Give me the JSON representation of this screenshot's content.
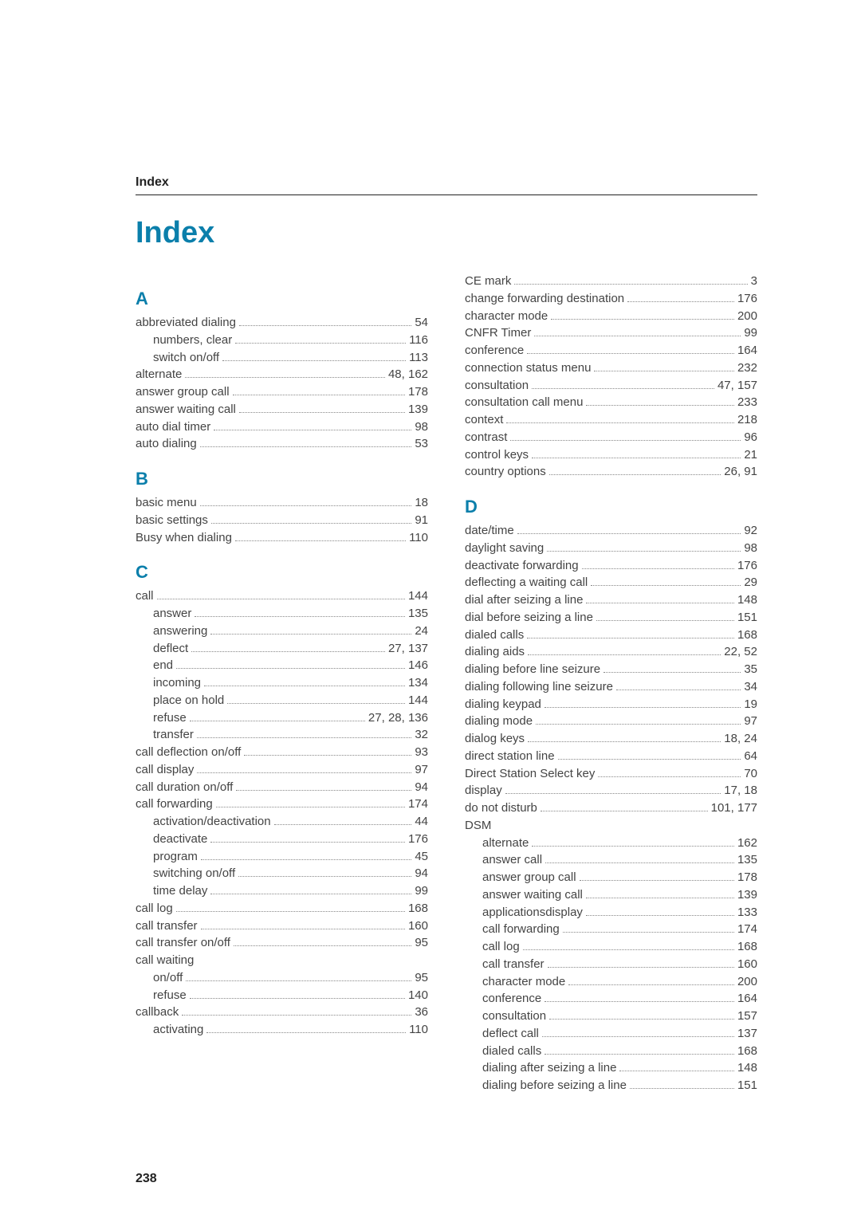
{
  "top_label": "Index",
  "main_heading": "Index",
  "page_number": "238",
  "colors": {
    "heading": "#0b7fab",
    "text": "#444444",
    "rule": "#222222",
    "dots": "#888888",
    "background": "#ffffff"
  },
  "fonts": {
    "main_heading_size": 38,
    "section_letter_size": 22,
    "entry_size": 15,
    "top_label_size": 16
  },
  "left_column": [
    {
      "type": "letter",
      "text": "A"
    },
    {
      "type": "entry",
      "label": "abbreviated dialing",
      "page": "54",
      "indent": 0
    },
    {
      "type": "entry",
      "label": "numbers, clear",
      "page": "116",
      "indent": 1
    },
    {
      "type": "entry",
      "label": "switch on/off",
      "page": "113",
      "indent": 1
    },
    {
      "type": "entry",
      "label": "alternate",
      "page": "48, 162",
      "indent": 0
    },
    {
      "type": "entry",
      "label": "answer group call",
      "page": "178",
      "indent": 0
    },
    {
      "type": "entry",
      "label": "answer waiting call",
      "page": "139",
      "indent": 0
    },
    {
      "type": "entry",
      "label": "auto dial timer",
      "page": "98",
      "indent": 0
    },
    {
      "type": "entry",
      "label": "auto dialing",
      "page": "53",
      "indent": 0
    },
    {
      "type": "letter",
      "text": "B"
    },
    {
      "type": "entry",
      "label": "basic menu",
      "page": "18",
      "indent": 0
    },
    {
      "type": "entry",
      "label": "basic settings",
      "page": "91",
      "indent": 0
    },
    {
      "type": "entry",
      "label": "Busy when dialing",
      "page": "110",
      "indent": 0
    },
    {
      "type": "letter",
      "text": "C"
    },
    {
      "type": "entry",
      "label": "call",
      "page": "144",
      "indent": 0
    },
    {
      "type": "entry",
      "label": "answer",
      "page": "135",
      "indent": 1
    },
    {
      "type": "entry",
      "label": "answering",
      "page": "24",
      "indent": 1
    },
    {
      "type": "entry",
      "label": "deflect",
      "page": "27, 137",
      "indent": 1
    },
    {
      "type": "entry",
      "label": "end",
      "page": "146",
      "indent": 1
    },
    {
      "type": "entry",
      "label": "incoming",
      "page": "134",
      "indent": 1
    },
    {
      "type": "entry",
      "label": "place on hold",
      "page": "144",
      "indent": 1
    },
    {
      "type": "entry",
      "label": "refuse",
      "page": "27, 28, 136",
      "indent": 1
    },
    {
      "type": "entry",
      "label": "transfer",
      "page": "32",
      "indent": 1
    },
    {
      "type": "entry",
      "label": "call deflection on/off",
      "page": "93",
      "indent": 0
    },
    {
      "type": "entry",
      "label": "call display",
      "page": "97",
      "indent": 0
    },
    {
      "type": "entry",
      "label": "call duration on/off",
      "page": "94",
      "indent": 0
    },
    {
      "type": "entry",
      "label": "call forwarding",
      "page": "174",
      "indent": 0
    },
    {
      "type": "entry",
      "label": "activation/deactivation",
      "page": "44",
      "indent": 1
    },
    {
      "type": "entry",
      "label": "deactivate",
      "page": "176",
      "indent": 1
    },
    {
      "type": "entry",
      "label": "program",
      "page": "45",
      "indent": 1
    },
    {
      "type": "entry",
      "label": "switching on/off",
      "page": "94",
      "indent": 1
    },
    {
      "type": "entry",
      "label": "time delay",
      "page": "99",
      "indent": 1
    },
    {
      "type": "entry",
      "label": "call log",
      "page": "168",
      "indent": 0
    },
    {
      "type": "entry",
      "label": "call transfer",
      "page": "160",
      "indent": 0
    },
    {
      "type": "entry",
      "label": "call transfer on/off",
      "page": "95",
      "indent": 0
    },
    {
      "type": "entry",
      "label": "call waiting",
      "page": "",
      "indent": 0,
      "nodots": true
    },
    {
      "type": "entry",
      "label": "on/off",
      "page": "95",
      "indent": 1
    },
    {
      "type": "entry",
      "label": "refuse",
      "page": "140",
      "indent": 1
    },
    {
      "type": "entry",
      "label": "callback",
      "page": "36",
      "indent": 0
    },
    {
      "type": "entry",
      "label": "activating",
      "page": "110",
      "indent": 1
    }
  ],
  "right_column": [
    {
      "type": "entry",
      "label": "CE mark",
      "page": "3",
      "indent": 0
    },
    {
      "type": "entry",
      "label": "change forwarding destination",
      "page": "176",
      "indent": 0
    },
    {
      "type": "entry",
      "label": "character mode",
      "page": "200",
      "indent": 0
    },
    {
      "type": "entry",
      "label": "CNFR Timer",
      "page": "99",
      "indent": 0
    },
    {
      "type": "entry",
      "label": "conference",
      "page": "164",
      "indent": 0
    },
    {
      "type": "entry",
      "label": "connection status menu",
      "page": "232",
      "indent": 0
    },
    {
      "type": "entry",
      "label": "consultation",
      "page": "47, 157",
      "indent": 0
    },
    {
      "type": "entry",
      "label": "consultation call menu",
      "page": "233",
      "indent": 0
    },
    {
      "type": "entry",
      "label": "context",
      "page": "218",
      "indent": 0
    },
    {
      "type": "entry",
      "label": "contrast",
      "page": "96",
      "indent": 0
    },
    {
      "type": "entry",
      "label": "control keys",
      "page": "21",
      "indent": 0
    },
    {
      "type": "entry",
      "label": "country options",
      "page": "26, 91",
      "indent": 0
    },
    {
      "type": "letter",
      "text": "D"
    },
    {
      "type": "entry",
      "label": "date/time",
      "page": "92",
      "indent": 0
    },
    {
      "type": "entry",
      "label": "daylight saving",
      "page": "98",
      "indent": 0
    },
    {
      "type": "entry",
      "label": "deactivate forwarding",
      "page": "176",
      "indent": 0
    },
    {
      "type": "entry",
      "label": "deflecting a waiting call",
      "page": "29",
      "indent": 0
    },
    {
      "type": "entry",
      "label": "dial after seizing a line",
      "page": "148",
      "indent": 0
    },
    {
      "type": "entry",
      "label": "dial before seizing a line",
      "page": "151",
      "indent": 0
    },
    {
      "type": "entry",
      "label": "dialed calls",
      "page": "168",
      "indent": 0
    },
    {
      "type": "entry",
      "label": "dialing aids",
      "page": "22, 52",
      "indent": 0
    },
    {
      "type": "entry",
      "label": "dialing before line seizure",
      "page": "35",
      "indent": 0
    },
    {
      "type": "entry",
      "label": "dialing following line seizure",
      "page": "34",
      "indent": 0
    },
    {
      "type": "entry",
      "label": "dialing keypad",
      "page": "19",
      "indent": 0
    },
    {
      "type": "entry",
      "label": "dialing mode",
      "page": "97",
      "indent": 0
    },
    {
      "type": "entry",
      "label": "dialog keys",
      "page": "18, 24",
      "indent": 0
    },
    {
      "type": "entry",
      "label": "direct station line",
      "page": "64",
      "indent": 0
    },
    {
      "type": "entry",
      "label": "Direct Station Select key",
      "page": "70",
      "indent": 0
    },
    {
      "type": "entry",
      "label": "display",
      "page": "17, 18",
      "indent": 0
    },
    {
      "type": "entry",
      "label": "do not disturb",
      "page": "101, 177",
      "indent": 0
    },
    {
      "type": "entry",
      "label": "DSM",
      "page": "",
      "indent": 0,
      "nodots": true
    },
    {
      "type": "entry",
      "label": "alternate",
      "page": "162",
      "indent": 1
    },
    {
      "type": "entry",
      "label": "answer call",
      "page": "135",
      "indent": 1
    },
    {
      "type": "entry",
      "label": "answer group call",
      "page": "178",
      "indent": 1
    },
    {
      "type": "entry",
      "label": "answer waiting call",
      "page": "139",
      "indent": 1
    },
    {
      "type": "entry",
      "label": "applicationsdisplay",
      "page": "133",
      "indent": 1
    },
    {
      "type": "entry",
      "label": "call forwarding",
      "page": "174",
      "indent": 1
    },
    {
      "type": "entry",
      "label": "call log",
      "page": "168",
      "indent": 1
    },
    {
      "type": "entry",
      "label": "call transfer",
      "page": "160",
      "indent": 1
    },
    {
      "type": "entry",
      "label": "character mode",
      "page": "200",
      "indent": 1
    },
    {
      "type": "entry",
      "label": "conference",
      "page": "164",
      "indent": 1
    },
    {
      "type": "entry",
      "label": "consultation",
      "page": "157",
      "indent": 1
    },
    {
      "type": "entry",
      "label": "deflect call",
      "page": "137",
      "indent": 1
    },
    {
      "type": "entry",
      "label": "dialed calls",
      "page": "168",
      "indent": 1
    },
    {
      "type": "entry",
      "label": "dialing after seizing a line",
      "page": "148",
      "indent": 1
    },
    {
      "type": "entry",
      "label": "dialing before seizing a line",
      "page": "151",
      "indent": 1
    }
  ]
}
